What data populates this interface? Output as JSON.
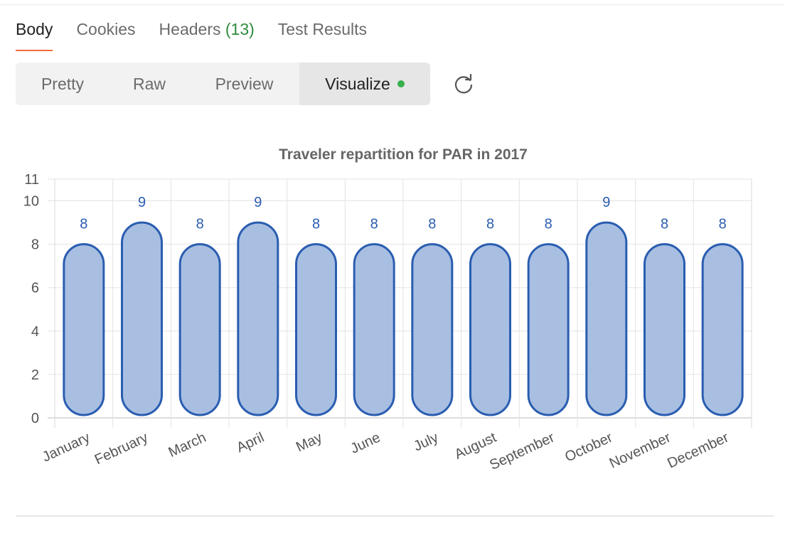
{
  "tabs": [
    {
      "label": "Body",
      "active": true
    },
    {
      "label": "Cookies",
      "active": false
    },
    {
      "label": "Headers",
      "count": "(13)",
      "active": false
    },
    {
      "label": "Test Results",
      "active": false
    }
  ],
  "view_modes": [
    {
      "label": "Pretty",
      "active": false
    },
    {
      "label": "Raw",
      "active": false
    },
    {
      "label": "Preview",
      "active": false
    },
    {
      "label": "Visualize",
      "active": true,
      "status_dot": true
    }
  ],
  "colors": {
    "tab_underline": "#f26b3a",
    "count_green": "#2e8b3d",
    "status_dot": "#36b04a",
    "bar_fill": "#a8bfe2",
    "bar_stroke": "#2a5db0",
    "data_label": "#2a5db0"
  },
  "icons": {
    "refresh": "refresh-icon"
  },
  "chart_data": {
    "type": "bar",
    "title": "Traveler repartition for PAR in 2017",
    "xlabel": "",
    "ylabel": "",
    "categories": [
      "January",
      "February",
      "March",
      "April",
      "May",
      "June",
      "July",
      "August",
      "September",
      "October",
      "November",
      "December"
    ],
    "values": [
      8,
      9,
      8,
      9,
      8,
      8,
      8,
      8,
      8,
      9,
      8,
      8
    ],
    "ylim": [
      0,
      11
    ],
    "yticks": [
      0,
      2,
      4,
      6,
      8,
      10,
      11
    ],
    "grid": true,
    "data_labels": true,
    "legend": "none"
  }
}
